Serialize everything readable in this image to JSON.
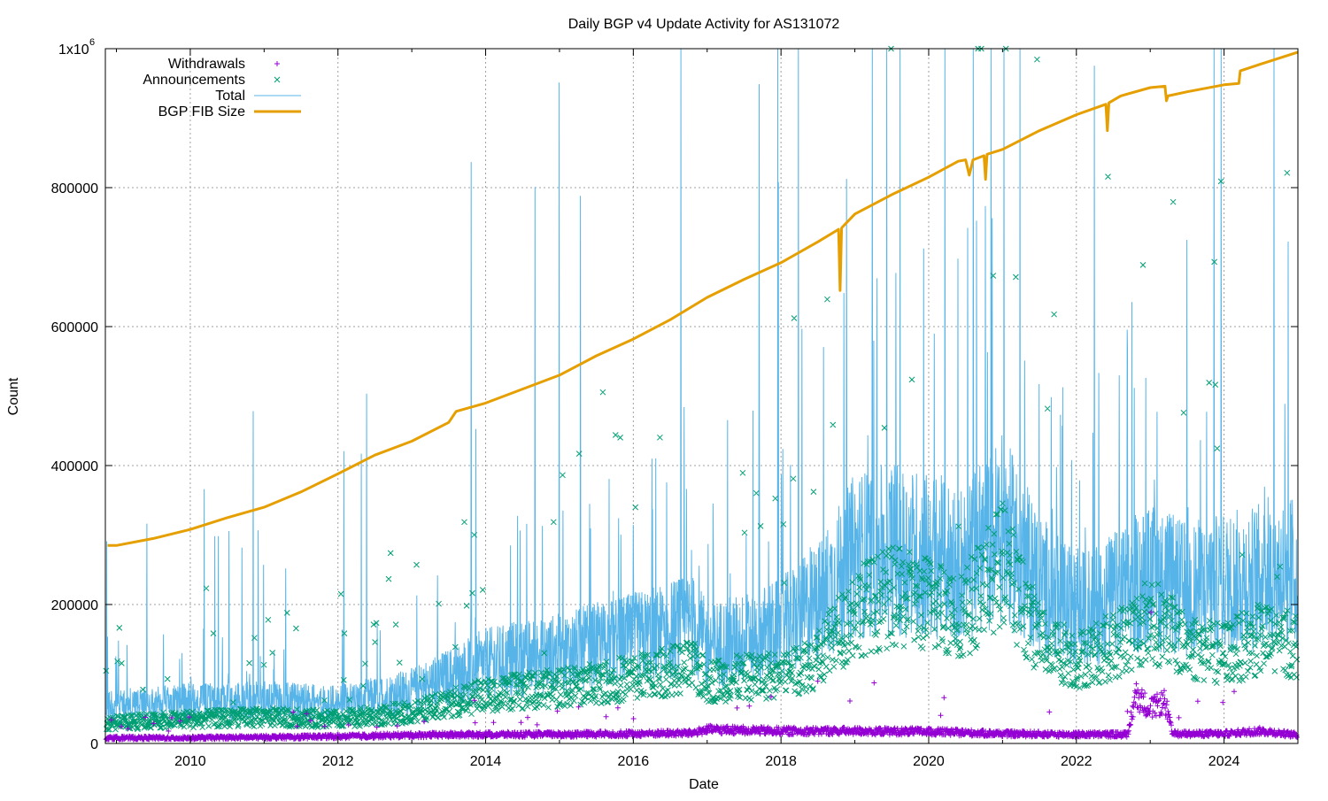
{
  "chart_data": {
    "type": "line",
    "title": "Daily BGP v4 Update Activity for AS131072",
    "xlabel": "Date",
    "ylabel": "Count",
    "xlim": [
      2008.85,
      2025.0
    ],
    "ylim": [
      0,
      1000000
    ],
    "grid": true,
    "legend_position": "top-left",
    "x_ticks": [
      {
        "value": 2010,
        "label": "2010"
      },
      {
        "value": 2012,
        "label": "2012"
      },
      {
        "value": 2014,
        "label": "2014"
      },
      {
        "value": 2016,
        "label": "2016"
      },
      {
        "value": 2018,
        "label": "2018"
      },
      {
        "value": 2020,
        "label": "2020"
      },
      {
        "value": 2022,
        "label": "2022"
      },
      {
        "value": 2024,
        "label": "2024"
      }
    ],
    "y_ticks": [
      {
        "value": 0,
        "label": "0"
      },
      {
        "value": 200000,
        "label": "200000"
      },
      {
        "value": 400000,
        "label": "400000"
      },
      {
        "value": 600000,
        "label": "600000"
      },
      {
        "value": 800000,
        "label": "800000"
      }
    ],
    "y_top_label": {
      "value": 1000000,
      "base": "1x10",
      "exponent": "6"
    },
    "legend": [
      {
        "name": "Withdrawals",
        "color": "#9400d3",
        "marker": "plus"
      },
      {
        "name": "Announcements",
        "color": "#009e73",
        "marker": "cross"
      },
      {
        "name": "Total",
        "color": "#56b4e9",
        "marker": "line"
      },
      {
        "name": "BGP FIB Size",
        "color": "#e69f00",
        "marker": "thick-line"
      }
    ],
    "series": [
      {
        "name": "BGP FIB Size",
        "color": "#e69f00",
        "x": [
          2008.88,
          2009.0,
          2009.5,
          2010.0,
          2010.5,
          2011.0,
          2011.5,
          2012.0,
          2012.5,
          2013.0,
          2013.5,
          2013.6,
          2014.0,
          2014.5,
          2015.0,
          2015.5,
          2016.0,
          2016.5,
          2017.0,
          2017.5,
          2018.0,
          2018.5,
          2018.78,
          2018.8,
          2018.82,
          2019.0,
          2019.5,
          2020.0,
          2020.4,
          2020.5,
          2020.55,
          2020.6,
          2020.75,
          2020.77,
          2020.79,
          2021.0,
          2021.5,
          2022.0,
          2022.4,
          2022.42,
          2022.44,
          2022.6,
          2023.0,
          2023.2,
          2023.22,
          2023.24,
          2023.5,
          2024.0,
          2024.2,
          2024.22,
          2024.5,
          2025.0
        ],
        "values": [
          285000,
          285000,
          295000,
          308000,
          325000,
          340000,
          362000,
          388000,
          415000,
          435000,
          462000,
          478000,
          490000,
          510000,
          530000,
          558000,
          582000,
          610000,
          642000,
          668000,
          692000,
          722000,
          740000,
          652000,
          742000,
          762000,
          790000,
          815000,
          838000,
          840000,
          818000,
          840000,
          846000,
          812000,
          848000,
          855000,
          882000,
          905000,
          920000,
          882000,
          922000,
          932000,
          944000,
          946000,
          925000,
          932000,
          938000,
          948000,
          950000,
          968000,
          978000,
          995000
        ]
      },
      {
        "name": "Total",
        "color": "#56b4e9",
        "x": [
          2009.0,
          2010.0,
          2011.0,
          2012.0,
          2013.0,
          2014.0,
          2015.0,
          2016.0,
          2016.8,
          2017.0,
          2017.5,
          2018.0,
          2018.5,
          2019.0,
          2019.5,
          2020.0,
          2020.5,
          2021.0,
          2021.5,
          2022.0,
          2022.5,
          2023.0,
          2023.5,
          2024.0,
          2024.5,
          2025.0
        ],
        "values": [
          55000,
          60000,
          62000,
          58000,
          75000,
          115000,
          130000,
          150000,
          170000,
          140000,
          150000,
          165000,
          200000,
          270000,
          280000,
          270000,
          260000,
          310000,
          230000,
          190000,
          210000,
          240000,
          220000,
          230000,
          240000,
          250000
        ]
      },
      {
        "name": "Announcements",
        "color": "#009e73",
        "x": [
          2009.0,
          2010.0,
          2011.0,
          2012.0,
          2013.0,
          2014.0,
          2015.0,
          2016.0,
          2016.8,
          2017.0,
          2017.5,
          2018.0,
          2018.5,
          2019.0,
          2019.5,
          2020.0,
          2020.5,
          2021.0,
          2021.5,
          2022.0,
          2022.5,
          2023.0,
          2023.5,
          2024.0,
          2024.5,
          2025.0
        ],
        "values": [
          30000,
          35000,
          38000,
          35000,
          45000,
          70000,
          80000,
          95000,
          110000,
          90000,
          95000,
          100000,
          120000,
          190000,
          210000,
          200000,
          190000,
          260000,
          150000,
          120000,
          140000,
          180000,
          140000,
          130000,
          150000,
          140000
        ]
      },
      {
        "name": "Withdrawals",
        "color": "#9400d3",
        "x": [
          2009.0,
          2010.0,
          2011.0,
          2012.0,
          2013.0,
          2014.0,
          2015.0,
          2016.0,
          2016.8,
          2017.0,
          2018.0,
          2019.0,
          2020.0,
          2021.0,
          2022.0,
          2022.7,
          2022.8,
          2023.0,
          2023.2,
          2023.3,
          2024.0,
          2024.5,
          2025.0
        ],
        "values": [
          8000,
          8000,
          9000,
          10000,
          12000,
          13000,
          13000,
          14000,
          15000,
          20000,
          18000,
          18000,
          17000,
          14000,
          13000,
          13000,
          70000,
          50000,
          60000,
          14000,
          14000,
          18000,
          12000
        ]
      }
    ]
  }
}
